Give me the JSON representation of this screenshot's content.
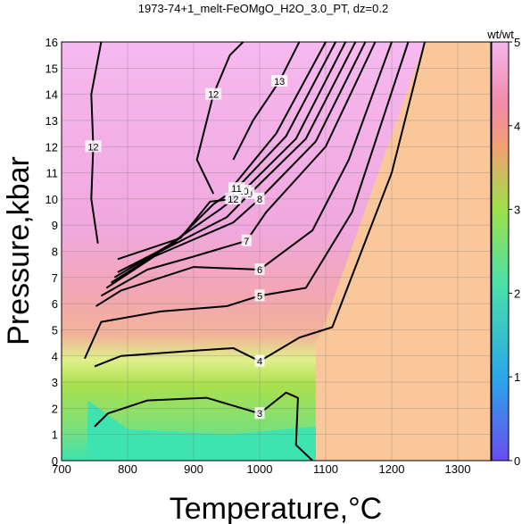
{
  "chart_data": {
    "type": "heatmap",
    "title": "1973-74+1_melt-FeOMgO_H2O_3.0_PT, dz=0.2",
    "xlabel": "Temperature,°C",
    "ylabel": "Pressure,kbar",
    "xlim": [
      700,
      1350
    ],
    "ylim": [
      0,
      16
    ],
    "xticks": [
      "700",
      "800",
      "900",
      "1000",
      "1100",
      "1200",
      "1300"
    ],
    "yticks": [
      "0",
      "1",
      "2",
      "3",
      "4",
      "5",
      "6",
      "7",
      "8",
      "9",
      "10",
      "11",
      "12",
      "13",
      "14",
      "15",
      "16"
    ],
    "grid": true,
    "colorbar": {
      "label": "wt/wt",
      "range": [
        0,
        5
      ],
      "ticks": [
        "0",
        "1",
        "2",
        "3",
        "4",
        "5"
      ],
      "colors": [
        "#6a4cf0",
        "#2aa8e8",
        "#4be0a8",
        "#9de04a",
        "#f2a074",
        "#f4b7ee"
      ]
    },
    "regions": [
      {
        "value": 3.9,
        "color": "#f9c79a",
        "points": [
          [
            1085,
            0
          ],
          [
            1350,
            0
          ],
          [
            1350,
            16
          ],
          [
            1250,
            16
          ],
          [
            1098,
            5.2
          ],
          [
            1085,
            4.5
          ]
        ]
      },
      {
        "value": 0.5,
        "color": "#3ee3b0",
        "points": [
          [
            738,
            0
          ],
          [
            1085,
            0
          ],
          [
            1085,
            1.3
          ],
          [
            950,
            1.0
          ],
          [
            800,
            1.2
          ],
          [
            740,
            2.3
          ]
        ]
      }
    ],
    "contours": [
      {
        "value": 3,
        "label": "3",
        "points": [
          [
            750,
            1.3
          ],
          [
            770,
            1.8
          ],
          [
            830,
            2.3
          ],
          [
            920,
            2.4
          ],
          [
            1000,
            1.8
          ],
          [
            1040,
            2.6
          ],
          [
            1058,
            2.4
          ],
          [
            1055,
            0.6
          ],
          [
            1080,
            0.0
          ]
        ]
      },
      {
        "value": 4,
        "label": "4",
        "points": [
          [
            750,
            3.6
          ],
          [
            790,
            4.0
          ],
          [
            900,
            4.2
          ],
          [
            960,
            4.3
          ],
          [
            1000,
            3.8
          ],
          [
            1060,
            4.7
          ],
          [
            1110,
            5.1
          ],
          [
            1200,
            11.0
          ],
          [
            1250,
            16.0
          ]
        ]
      },
      {
        "value": 5,
        "label": "5",
        "points": [
          [
            735,
            3.9
          ],
          [
            760,
            5.3
          ],
          [
            850,
            5.7
          ],
          [
            950,
            5.9
          ],
          [
            1000,
            6.3
          ],
          [
            1070,
            6.6
          ],
          [
            1140,
            9.5
          ],
          [
            1225,
            16.0
          ]
        ]
      },
      {
        "value": 6,
        "label": "6",
        "points": [
          [
            752,
            5.9
          ],
          [
            790,
            6.5
          ],
          [
            900,
            7.4
          ],
          [
            1000,
            7.3
          ],
          [
            1080,
            8.8
          ],
          [
            1135,
            11.5
          ],
          [
            1200,
            16.0
          ]
        ]
      },
      {
        "value": 7,
        "label": "7",
        "points": [
          [
            760,
            6.3
          ],
          [
            830,
            7.3
          ],
          [
            900,
            7.8
          ],
          [
            980,
            8.4
          ],
          [
            1010,
            9.5
          ],
          [
            1100,
            12.0
          ],
          [
            1175,
            16.0
          ]
        ]
      },
      {
        "value": 8,
        "label": "8",
        "points": [
          [
            768,
            6.6
          ],
          [
            840,
            7.8
          ],
          [
            960,
            9.1
          ],
          [
            1000,
            10.0
          ],
          [
            1085,
            12.2
          ],
          [
            1160,
            16.0
          ]
        ]
      },
      {
        "value": 9,
        "label": "9",
        "points": [
          [
            775,
            6.8
          ],
          [
            850,
            8.0
          ],
          [
            950,
            9.3
          ],
          [
            985,
            10.2
          ],
          [
            1070,
            12.3
          ],
          [
            1145,
            16.0
          ]
        ]
      },
      {
        "value": 10,
        "label": "10",
        "points": [
          [
            780,
            7.0
          ],
          [
            860,
            8.2
          ],
          [
            940,
            9.6
          ],
          [
            975,
            10.3
          ],
          [
            1055,
            12.3
          ],
          [
            1130,
            16.0
          ]
        ]
      },
      {
        "value": 11,
        "label": "11",
        "points": [
          [
            785,
            7.2
          ],
          [
            870,
            8.3
          ],
          [
            930,
            9.8
          ],
          [
            965,
            10.4
          ],
          [
            1040,
            12.4
          ],
          [
            1115,
            16.0
          ]
        ]
      },
      {
        "value": 12,
        "label": "12",
        "points": [
          [
            785,
            7.7
          ],
          [
            880,
            8.5
          ],
          [
            925,
            9.9
          ],
          [
            960,
            10.0
          ],
          [
            960,
            10.5
          ],
          [
            1025,
            12.5
          ],
          [
            1100,
            16.0
          ]
        ]
      },
      {
        "value": 12.5,
        "label": "12",
        "points": [
          [
            930,
            10.2
          ],
          [
            905,
            11.5
          ],
          [
            930,
            14.0
          ],
          [
            955,
            15.5
          ],
          [
            975,
            16.0
          ]
        ]
      },
      {
        "value": 13,
        "label": "13",
        "points": [
          [
            960,
            11.5
          ],
          [
            990,
            13.0
          ],
          [
            1030,
            14.5
          ],
          [
            1060,
            16.0
          ]
        ]
      },
      {
        "value": 12.0,
        "label": "12",
        "points": [
          [
            755,
            8.3
          ],
          [
            745,
            10.0
          ],
          [
            748,
            12.0
          ],
          [
            745,
            14.0
          ],
          [
            760,
            16.0
          ]
        ]
      }
    ]
  }
}
